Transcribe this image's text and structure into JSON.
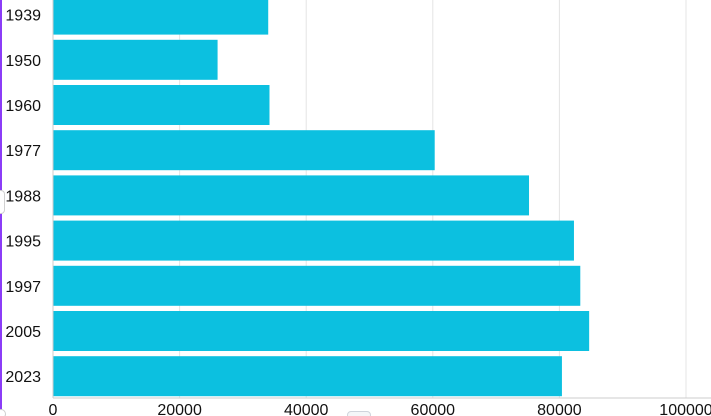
{
  "chart_data": {
    "type": "bar",
    "orientation": "horizontal",
    "categories": [
      "1939",
      "1950",
      "1960",
      "1977",
      "1988",
      "1995",
      "1997",
      "2005",
      "2023"
    ],
    "values": [
      34000,
      26000,
      34200,
      60300,
      75200,
      82300,
      83300,
      84700,
      80400
    ],
    "xlim": [
      0,
      100000
    ],
    "x_ticks": [
      "0",
      "20000",
      "40000",
      "60000",
      "80000",
      "100000"
    ],
    "x_tick_values": [
      0,
      20000,
      40000,
      60000,
      80000,
      100000
    ],
    "title": "",
    "xlabel": "",
    "ylabel": "",
    "grid": "vertical",
    "legend": "none",
    "colors": {
      "bar": "#0cc0e0",
      "grid": "#e4e4e4",
      "axis": "#cccccc",
      "accent": "#8b3cf7"
    }
  }
}
